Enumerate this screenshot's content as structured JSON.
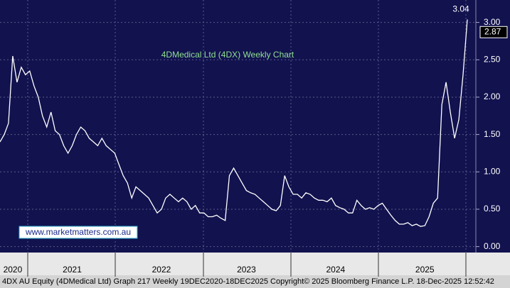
{
  "chart_data": {
    "type": "line",
    "title": "4DMedical Ltd (4DX) Weekly Chart",
    "footer": "4DX AU Equity (4DMedical Ltd) Graph 217 Weekly 19DEC2020-18DEC2025 Copyright© 2025 Bloomberg Finance L.P.  18-Dec-2025 12:52:42",
    "watermark": "www.marketmatters.com.au",
    "high_label": 3.04,
    "last_price": 2.87,
    "categories": [
      null,
      null,
      null,
      "2020",
      null,
      null,
      null,
      null,
      null,
      null,
      null,
      null,
      null,
      null,
      null,
      null,
      null,
      "2021",
      null,
      null,
      null,
      null,
      null,
      null,
      null,
      null,
      null,
      null,
      null,
      null,
      null,
      null,
      null,
      null,
      null,
      null,
      null,
      null,
      "2022",
      null,
      null,
      null,
      null,
      null,
      null,
      null,
      null,
      null,
      null,
      null,
      null,
      null,
      null,
      null,
      null,
      null,
      null,
      null,
      "2023",
      null,
      null,
      null,
      null,
      null,
      null,
      null,
      null,
      null,
      null,
      null,
      null,
      null,
      null,
      null,
      null,
      null,
      null,
      null,
      null,
      "2024",
      null,
      null,
      null,
      null,
      null,
      null,
      null,
      null,
      null,
      null,
      null,
      null,
      null,
      null,
      null,
      null,
      null,
      null,
      null,
      null,
      "2025",
      null,
      null,
      null,
      null,
      null,
      null,
      null,
      null,
      null,
      null
    ],
    "series": [
      {
        "name": "4DX",
        "color": "#ffffff",
        "values": [
          1.4,
          1.5,
          1.65,
          2.55,
          2.2,
          2.4,
          2.3,
          2.35,
          2.15,
          2.0,
          1.75,
          1.6,
          1.8,
          1.55,
          1.5,
          1.35,
          1.25,
          1.35,
          1.5,
          1.6,
          1.55,
          1.45,
          1.4,
          1.35,
          1.45,
          1.35,
          1.3,
          1.25,
          1.1,
          0.95,
          0.85,
          0.65,
          0.8,
          0.75,
          0.7,
          0.65,
          0.55,
          0.45,
          0.5,
          0.65,
          0.7,
          0.65,
          0.6,
          0.65,
          0.6,
          0.5,
          0.55,
          0.45,
          0.45,
          0.4,
          0.4,
          0.42,
          0.38,
          0.35,
          0.95,
          1.05,
          0.95,
          0.85,
          0.75,
          0.72,
          0.7,
          0.65,
          0.6,
          0.55,
          0.5,
          0.48,
          0.55,
          0.95,
          0.8,
          0.7,
          0.7,
          0.65,
          0.72,
          0.7,
          0.65,
          0.62,
          0.62,
          0.6,
          0.65,
          0.55,
          0.52,
          0.5,
          0.45,
          0.45,
          0.62,
          0.55,
          0.5,
          0.52,
          0.5,
          0.55,
          0.58,
          0.5,
          0.42,
          0.35,
          0.3,
          0.3,
          0.32,
          0.28,
          0.3,
          0.27,
          0.28,
          0.4,
          0.58,
          0.65,
          1.9,
          2.2,
          1.8,
          1.45,
          1.7,
          2.3,
          3.04
        ]
      }
    ],
    "ylim": [
      -0.07,
      3.3
    ],
    "yticks": [
      {
        "value": 0,
        "label": "0.00"
      },
      {
        "value": 0.5,
        "label": "0.50"
      },
      {
        "value": 1,
        "label": "1.00"
      },
      {
        "value": 1.5,
        "label": "1.50"
      },
      {
        "value": 2,
        "label": "2.00"
      },
      {
        "value": 2.5,
        "label": "2.50"
      },
      {
        "value": 3,
        "label": "3.00"
      }
    ],
    "grid": true
  }
}
